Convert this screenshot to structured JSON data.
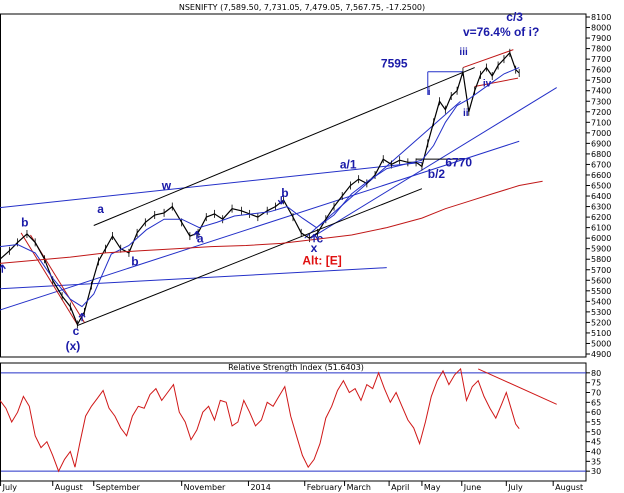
{
  "header": {
    "price_title": "NSENIFTY (7,589.50, 7,731.05, 7,479.05, 7,567.75, -17.2500)",
    "rsi_title": "Relative Strength Index (51.6403)"
  },
  "colors": {
    "price": "#000000",
    "wave_label": "#1a1aa8",
    "channel_blue": "#2430c8",
    "channel_black": "#000000",
    "moving_average": "#c01818",
    "rsi": "#d01818",
    "alt_label": "#e01010"
  },
  "chart_data": [
    {
      "type": "line",
      "title": "NSENIFTY (7,589.50, 7,731.05, 7,479.05, 7,567.75, -17.2500)",
      "ylim": [
        4900,
        8100
      ],
      "y_ticks": [
        4900,
        5000,
        5100,
        5200,
        5300,
        5400,
        5500,
        5600,
        5700,
        5800,
        5900,
        6000,
        6100,
        6200,
        6300,
        6400,
        6500,
        6600,
        6700,
        6800,
        6900,
        7000,
        7100,
        7200,
        7300,
        7400,
        7500,
        7600,
        7700,
        7800,
        7900,
        8000,
        8100
      ],
      "x_labels": [
        {
          "label": "July",
          "t": 0.05
        },
        {
          "label": "August",
          "t": 4.5
        },
        {
          "label": "September",
          "t": 8.0
        },
        {
          "label": "November",
          "t": 15.5
        },
        {
          "label": "2014",
          "t": 21.2
        },
        {
          "label": "February",
          "t": 26.0
        },
        {
          "label": "March",
          "t": 29.4
        },
        {
          "label": "April",
          "t": 33.2
        },
        {
          "label": "May",
          "t": 36.0
        },
        {
          "label": "June",
          "t": 39.4
        },
        {
          "label": "July",
          "t": 43.2
        },
        {
          "label": "August",
          "t": 47.2
        }
      ],
      "x_range": [
        0,
        50
      ],
      "series": [
        {
          "kind": "price",
          "points": [
            [
              0,
              5800
            ],
            [
              0.8,
              5880
            ],
            [
              1.5,
              5960
            ],
            [
              2.3,
              6040
            ],
            [
              3.0,
              5960
            ],
            [
              3.8,
              5800
            ],
            [
              4.5,
              5600
            ],
            [
              5.3,
              5450
            ],
            [
              6.0,
              5350
            ],
            [
              6.6,
              5180
            ],
            [
              7.2,
              5300
            ],
            [
              7.8,
              5550
            ],
            [
              8.4,
              5780
            ],
            [
              9.0,
              5900
            ],
            [
              9.6,
              6020
            ],
            [
              10.3,
              5900
            ],
            [
              11.0,
              5860
            ],
            [
              11.7,
              6050
            ],
            [
              12.4,
              6150
            ],
            [
              13.2,
              6220
            ],
            [
              14.0,
              6240
            ],
            [
              14.7,
              6300
            ],
            [
              15.5,
              6150
            ],
            [
              16.2,
              6020
            ],
            [
              16.9,
              6050
            ],
            [
              17.6,
              6200
            ],
            [
              18.3,
              6230
            ],
            [
              19.0,
              6180
            ],
            [
              19.8,
              6280
            ],
            [
              20.6,
              6260
            ],
            [
              21.3,
              6230
            ],
            [
              22.0,
              6200
            ],
            [
              22.8,
              6260
            ],
            [
              23.5,
              6300
            ],
            [
              24.2,
              6360
            ],
            [
              25.0,
              6200
            ],
            [
              25.7,
              6050
            ],
            [
              26.4,
              6000
            ],
            [
              27.1,
              6050
            ],
            [
              27.8,
              6180
            ],
            [
              28.5,
              6300
            ],
            [
              29.2,
              6400
            ],
            [
              29.9,
              6500
            ],
            [
              30.6,
              6560
            ],
            [
              31.3,
              6520
            ],
            [
              32.0,
              6600
            ],
            [
              32.7,
              6750
            ],
            [
              33.4,
              6700
            ],
            [
              34.1,
              6740
            ],
            [
              34.8,
              6720
            ],
            [
              35.5,
              6720
            ],
            [
              36.0,
              6680
            ],
            [
              36.5,
              6900
            ],
            [
              37.0,
              7100
            ],
            [
              37.5,
              7300
            ],
            [
              38.0,
              7220
            ],
            [
              38.5,
              7350
            ],
            [
              39.0,
              7400
            ],
            [
              39.5,
              7580
            ],
            [
              40.0,
              7200
            ],
            [
              40.5,
              7400
            ],
            [
              41.0,
              7550
            ],
            [
              41.5,
              7620
            ],
            [
              42.0,
              7540
            ],
            [
              42.5,
              7640
            ],
            [
              43.0,
              7700
            ],
            [
              43.5,
              7760
            ],
            [
              44.0,
              7600
            ],
            [
              44.3,
              7568
            ]
          ]
        },
        {
          "kind": "ma_short",
          "points": [
            [
              0,
              5920
            ],
            [
              1.5,
              5940
            ],
            [
              3.0,
              5860
            ],
            [
              4.5,
              5620
            ],
            [
              6.0,
              5420
            ],
            [
              7.0,
              5350
            ],
            [
              8.0,
              5470
            ],
            [
              9.5,
              5850
            ],
            [
              11.0,
              5930
            ],
            [
              12.5,
              6080
            ],
            [
              14.0,
              6180
            ],
            [
              15.5,
              6180
            ],
            [
              17.0,
              6100
            ],
            [
              18.5,
              6150
            ],
            [
              20.0,
              6210
            ],
            [
              21.5,
              6230
            ],
            [
              23.0,
              6250
            ],
            [
              24.5,
              6300
            ],
            [
              25.8,
              6190
            ],
            [
              27.0,
              6100
            ],
            [
              28.5,
              6220
            ],
            [
              30.0,
              6420
            ],
            [
              31.5,
              6550
            ],
            [
              33.0,
              6660
            ],
            [
              34.5,
              6700
            ],
            [
              36.0,
              6740
            ],
            [
              37.0,
              6880
            ],
            [
              38.0,
              7100
            ],
            [
              39.0,
              7260
            ],
            [
              40.0,
              7320
            ],
            [
              41.0,
              7400
            ],
            [
              42.0,
              7480
            ],
            [
              43.0,
              7560
            ],
            [
              44.3,
              7620
            ]
          ]
        },
        {
          "kind": "ma_long",
          "points": [
            [
              0,
              5760
            ],
            [
              3.0,
              5790
            ],
            [
              6.0,
              5820
            ],
            [
              9.0,
              5860
            ],
            [
              12.0,
              5880
            ],
            [
              15.0,
              5900
            ],
            [
              18.0,
              5920
            ],
            [
              21.0,
              5930
            ],
            [
              24.0,
              5950
            ],
            [
              27.0,
              5990
            ],
            [
              30.0,
              6030
            ],
            [
              33.0,
              6100
            ],
            [
              36.0,
              6190
            ],
            [
              38.0,
              6280
            ],
            [
              40.0,
              6350
            ],
            [
              42.0,
              6420
            ],
            [
              44.3,
              6500
            ],
            [
              46.3,
              6540
            ]
          ]
        }
      ],
      "annotations": [
        {
          "text": "c/3",
          "t": 43.2,
          "v": 8060,
          "size": "large"
        },
        {
          "text": "v=76.4%  of i?",
          "t": 39.5,
          "v": 7920,
          "size": "large"
        },
        {
          "text": "iii",
          "t": 39.2,
          "v": 7740,
          "size": "medium"
        },
        {
          "text": "7595",
          "t": 32.5,
          "v": 7620,
          "size": "large"
        },
        {
          "text": "iv",
          "t": 41.2,
          "v": 7440,
          "size": "medium"
        },
        {
          "text": "i",
          "t": 36.5,
          "v": 7360,
          "size": "medium"
        },
        {
          "text": "ii",
          "t": 39.5,
          "v": 7160,
          "size": "medium"
        },
        {
          "text": "a/1",
          "t": 29.0,
          "v": 6660,
          "size": "large"
        },
        {
          "text": "6770",
          "t": 38.0,
          "v": 6680,
          "size": "large"
        },
        {
          "text": "b/2",
          "t": 36.5,
          "v": 6570,
          "size": "large"
        },
        {
          "text": "w",
          "t": 13.8,
          "v": 6460,
          "size": "large"
        },
        {
          "text": "b",
          "t": 24.0,
          "v": 6390,
          "size": "large"
        },
        {
          "text": "b",
          "t": 1.8,
          "v": 6110,
          "size": "large"
        },
        {
          "text": "a",
          "t": 8.3,
          "v": 6240,
          "size": "large"
        },
        {
          "text": "a",
          "t": 16.8,
          "v": 5960,
          "size": "large"
        },
        {
          "text": "c",
          "t": 27.0,
          "v": 5960,
          "size": "large"
        },
        {
          "text": "x",
          "t": 26.5,
          "v": 5870,
          "size": "large"
        },
        {
          "text": "b",
          "t": 11.2,
          "v": 5740,
          "size": "large"
        },
        {
          "text": "c",
          "t": 6.2,
          "v": 5080,
          "size": "large"
        },
        {
          "text": "(x)",
          "t": 5.6,
          "v": 4940,
          "size": "large"
        }
      ],
      "alt_annotation": {
        "text": "Alt: [E]",
        "t": 25.8,
        "v": 5750
      }
    },
    {
      "type": "line",
      "title": "Relative Strength Index (51.6403)",
      "ylim": [
        25,
        85
      ],
      "y_ticks": [
        30,
        35,
        40,
        45,
        50,
        55,
        60,
        65,
        70,
        75,
        80
      ],
      "reference_lines": [
        80,
        30
      ],
      "series": [
        {
          "kind": "rsi",
          "points": [
            [
              0,
              66
            ],
            [
              0.5,
              62
            ],
            [
              1.0,
              55
            ],
            [
              1.5,
              60
            ],
            [
              2.0,
              68
            ],
            [
              2.5,
              63
            ],
            [
              3.0,
              48
            ],
            [
              3.5,
              42
            ],
            [
              4.0,
              45
            ],
            [
              4.5,
              38
            ],
            [
              5.0,
              30
            ],
            [
              5.5,
              36
            ],
            [
              6.0,
              40
            ],
            [
              6.4,
              32
            ],
            [
              6.8,
              44
            ],
            [
              7.3,
              58
            ],
            [
              7.8,
              63
            ],
            [
              8.3,
              67
            ],
            [
              8.8,
              71
            ],
            [
              9.3,
              62
            ],
            [
              9.8,
              58
            ],
            [
              10.3,
              52
            ],
            [
              10.8,
              48
            ],
            [
              11.3,
              58
            ],
            [
              11.8,
              63
            ],
            [
              12.3,
              62
            ],
            [
              12.8,
              69
            ],
            [
              13.3,
              72
            ],
            [
              13.8,
              66
            ],
            [
              14.3,
              70
            ],
            [
              14.8,
              74
            ],
            [
              15.3,
              60
            ],
            [
              15.8,
              55
            ],
            [
              16.3,
              46
            ],
            [
              16.8,
              51
            ],
            [
              17.3,
              60
            ],
            [
              17.8,
              63
            ],
            [
              18.3,
              56
            ],
            [
              18.8,
              66
            ],
            [
              19.3,
              65
            ],
            [
              19.8,
              53
            ],
            [
              20.3,
              55
            ],
            [
              20.8,
              66
            ],
            [
              21.3,
              60
            ],
            [
              21.8,
              53
            ],
            [
              22.3,
              56
            ],
            [
              22.8,
              65
            ],
            [
              23.3,
              63
            ],
            [
              23.8,
              68
            ],
            [
              24.3,
              73
            ],
            [
              24.8,
              58
            ],
            [
              25.3,
              48
            ],
            [
              25.8,
              38
            ],
            [
              26.3,
              32
            ],
            [
              26.8,
              36
            ],
            [
              27.3,
              44
            ],
            [
              27.8,
              57
            ],
            [
              28.3,
              63
            ],
            [
              28.8,
              71
            ],
            [
              29.3,
              76
            ],
            [
              29.8,
              70
            ],
            [
              30.3,
              72
            ],
            [
              30.8,
              66
            ],
            [
              31.3,
              74
            ],
            [
              31.8,
              72
            ],
            [
              32.3,
              80
            ],
            [
              32.8,
              72
            ],
            [
              33.3,
              65
            ],
            [
              33.8,
              70
            ],
            [
              34.3,
              63
            ],
            [
              34.8,
              56
            ],
            [
              35.3,
              52
            ],
            [
              35.8,
              44
            ],
            [
              36.3,
              55
            ],
            [
              36.8,
              68
            ],
            [
              37.3,
              76
            ],
            [
              37.8,
              81
            ],
            [
              38.3,
              74
            ],
            [
              38.8,
              79
            ],
            [
              39.3,
              82
            ],
            [
              39.8,
              66
            ],
            [
              40.3,
              73
            ],
            [
              40.8,
              76
            ],
            [
              41.3,
              68
            ],
            [
              41.8,
              62
            ],
            [
              42.3,
              57
            ],
            [
              42.8,
              64
            ],
            [
              43.2,
              70
            ],
            [
              43.6,
              62
            ],
            [
              44.0,
              54
            ],
            [
              44.3,
              51.6
            ]
          ]
        }
      ],
      "trendline": [
        [
          40.8,
          82
        ],
        [
          47.5,
          64
        ]
      ]
    }
  ]
}
